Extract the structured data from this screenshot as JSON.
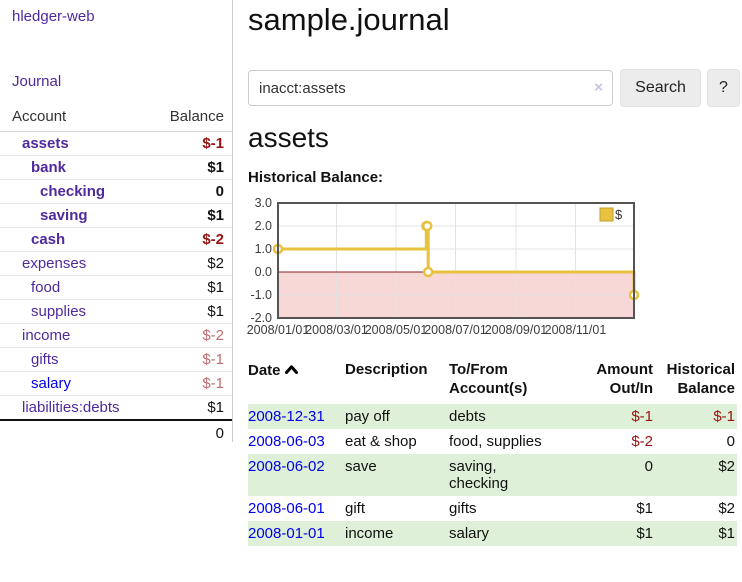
{
  "colors": {
    "link_purple": "#4f2a9e",
    "link_blue": "#0000e8",
    "negative_strong": "#991111",
    "negative_soft": "#c06b6f",
    "row_stripe_green": "#dff0d8",
    "chart_line_gold": "#E8C23F",
    "chart_negative_fill": "#f8d7d7",
    "chart_zero_line": "#8b1f1f"
  },
  "sidebar": {
    "app_title": "hledger-web",
    "journal_label": "Journal",
    "accounts_table": {
      "account_header": "Account",
      "balance_header": "Balance",
      "rows": [
        {
          "name": "assets",
          "indent": 1,
          "bold": true,
          "link": "purple",
          "balance": "$-1",
          "balance_style": "neg"
        },
        {
          "name": "bank",
          "indent": 2,
          "bold": true,
          "link": "purple",
          "balance": "$1",
          "balance_style": ""
        },
        {
          "name": "checking",
          "indent": 3,
          "bold": true,
          "link": "purple",
          "balance": "0",
          "balance_style": ""
        },
        {
          "name": "saving",
          "indent": 3,
          "bold": true,
          "link": "purple",
          "balance": "$1",
          "balance_style": ""
        },
        {
          "name": "cash",
          "indent": 2,
          "bold": true,
          "link": "purple",
          "balance": "$-2",
          "balance_style": "neg"
        },
        {
          "name": "expenses",
          "indent": 1,
          "bold": false,
          "link": "purple",
          "balance": "$2",
          "balance_style": ""
        },
        {
          "name": "food",
          "indent": 2,
          "bold": false,
          "link": "purple",
          "balance": "$1",
          "balance_style": ""
        },
        {
          "name": "supplies",
          "indent": 2,
          "bold": false,
          "link": "purple",
          "balance": "$1",
          "balance_style": ""
        },
        {
          "name": "income",
          "indent": 1,
          "bold": false,
          "link": "purple",
          "balance": "$-2",
          "balance_style": "negsoft"
        },
        {
          "name": "gifts",
          "indent": 2,
          "bold": false,
          "link": "purple",
          "balance": "$-1",
          "balance_style": "negsoft"
        },
        {
          "name": "salary",
          "indent": 2,
          "bold": false,
          "link": "blue",
          "balance": "$-1",
          "balance_style": "negsoft"
        },
        {
          "name": "liabilities:debts",
          "indent": 1,
          "bold": false,
          "link": "purple",
          "balance": "$1",
          "balance_style": ""
        }
      ],
      "total": "0"
    }
  },
  "main": {
    "title": "sample.journal",
    "search": {
      "value": "inacct:assets",
      "clear_icon": "×",
      "search_button_label": "Search",
      "help_button_label": "?"
    },
    "account_heading": "assets",
    "chart_label": "Historical Balance:"
  },
  "chart_data": {
    "type": "line",
    "step": true,
    "title": "Historical Balance",
    "xlim": [
      "2008-01-01",
      "2008-12-31"
    ],
    "ylim": [
      -2,
      3
    ],
    "y_ticks": [
      3.0,
      2.0,
      1.0,
      0.0,
      -1.0,
      -2.0
    ],
    "x_ticks": [
      "2008/01/01",
      "2008/03/01",
      "2008/05/01",
      "2008/07/01",
      "2008/09/01",
      "2008/11/01"
    ],
    "legend": "$",
    "legend_position": "top-right",
    "grid": true,
    "negative_fill": "#f8d7d7",
    "series": [
      {
        "name": "$",
        "color": "#E8C23F",
        "points": [
          [
            "2008-01-01",
            1
          ],
          [
            "2008-06-01",
            2
          ],
          [
            "2008-06-02",
            2
          ],
          [
            "2008-06-03",
            0
          ],
          [
            "2008-12-31",
            -1
          ]
        ]
      }
    ]
  },
  "transactions": {
    "headers": {
      "date": "Date",
      "description": "Description",
      "accounts": "To/From Account(s)",
      "amount": "Amount Out/In",
      "balance": "Historical Balance"
    },
    "rows": [
      {
        "date": "2008-12-31",
        "description": "pay off",
        "accounts": "debts",
        "amount": "$-1",
        "amount_style": "neg",
        "balance": "$-1",
        "balance_style": "neg"
      },
      {
        "date": "2008-06-03",
        "description": "eat & shop",
        "accounts": "food, supplies",
        "amount": "$-2",
        "amount_style": "neg",
        "balance": "0",
        "balance_style": ""
      },
      {
        "date": "2008-06-02",
        "description": "save",
        "accounts": "saving,\nchecking",
        "amount": "0",
        "amount_style": "",
        "balance": "$2",
        "balance_style": ""
      },
      {
        "date": "2008-06-01",
        "description": "gift",
        "accounts": "gifts",
        "amount": "$1",
        "amount_style": "",
        "balance": "$2",
        "balance_style": ""
      },
      {
        "date": "2008-01-01",
        "description": "income",
        "accounts": "salary",
        "amount": "$1",
        "amount_style": "",
        "balance": "$1",
        "balance_style": ""
      }
    ]
  }
}
